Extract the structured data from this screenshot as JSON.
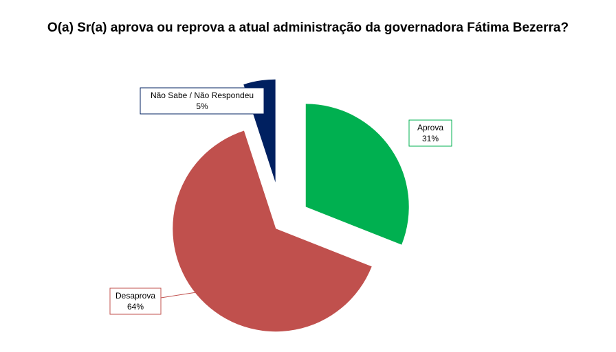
{
  "chart_data": {
    "type": "pie",
    "title": "O(a) Sr(a) aprova ou reprova a atual administração da governadora Fátima Bezerra?",
    "categories": [
      "Aprova",
      "Desaprova",
      "Não Sabe / Não Respondeu"
    ],
    "values": [
      31,
      64,
      5
    ],
    "value_labels": [
      "31%",
      "64%",
      "5%"
    ],
    "colors": [
      "#00B050",
      "#C0504D",
      "#002060"
    ],
    "exploded": true,
    "legend": "none",
    "data_labels": "callouts"
  }
}
